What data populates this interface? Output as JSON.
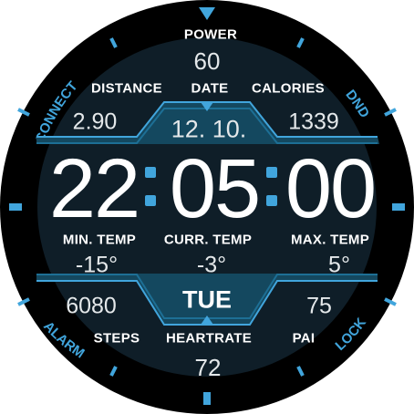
{
  "colors": {
    "accent": "#41a5dc",
    "face": "#0e1c26",
    "bezel": "#000000",
    "text": "#ffffff"
  },
  "top": {
    "label": "POWER",
    "value": "60"
  },
  "row1": {
    "distance_label": "DISTANCE",
    "distance_value": "2.90",
    "date_label": "DATE",
    "date_value": "12. 10.",
    "calories_label": "CALORIES",
    "calories_value": "1339"
  },
  "time": {
    "hours": "22",
    "minutes": "05",
    "seconds": "00"
  },
  "temps": {
    "min_label": "MIN. TEMP",
    "min_value": "-15°",
    "curr_label": "CURR. TEMP",
    "curr_value": "-3°",
    "max_label": "MAX. TEMP",
    "max_value": "5°"
  },
  "row2": {
    "steps_value": "6080",
    "steps_label": "STEPS",
    "day": "TUE",
    "heartrate_label": "HEARTRATE",
    "heartrate_value": "72",
    "pai_value": "75",
    "pai_label": "PAI"
  },
  "bezel": {
    "top_left": "CONNECT",
    "top_right": "DND",
    "bottom_left": "ALARM",
    "bottom_right": "LOCK"
  },
  "icons": {
    "top": "triangle-down-icon"
  }
}
